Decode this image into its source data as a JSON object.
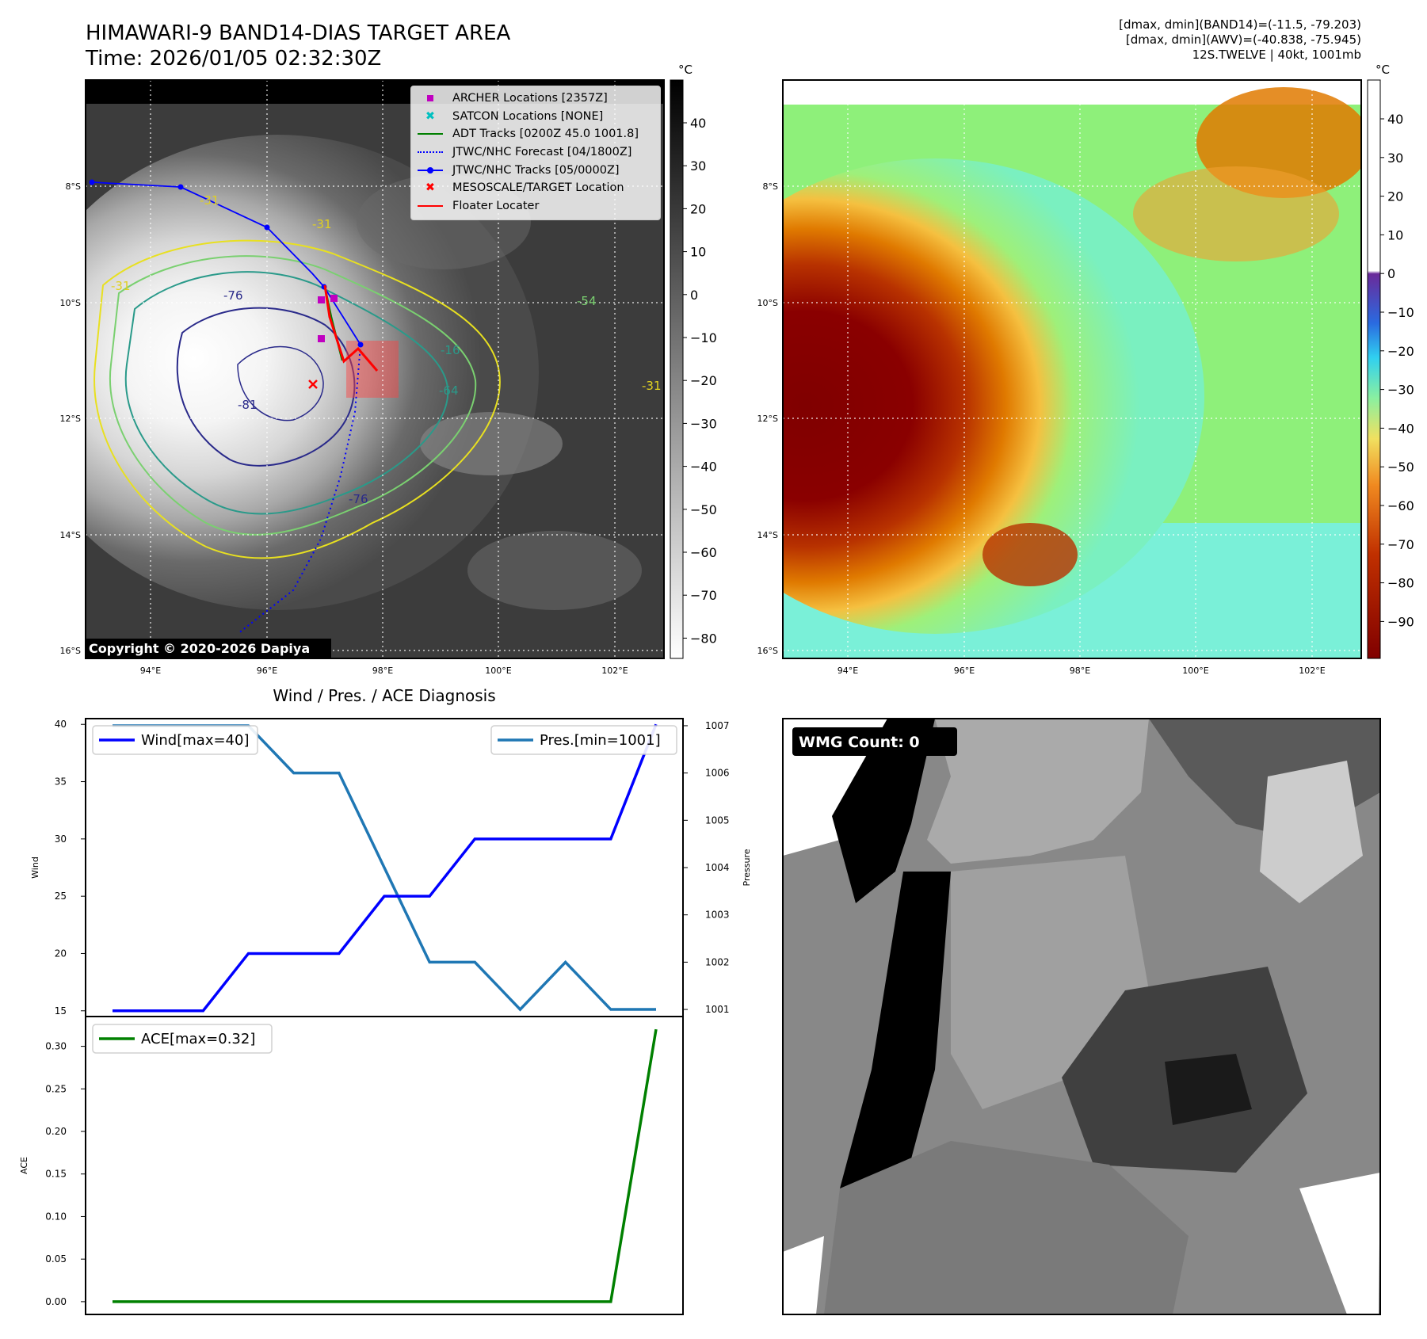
{
  "header": {
    "title_line1": "HIMAWARI-9 BAND14-DIAS TARGET AREA",
    "title_line2": "Time: 2026/01/05 02:32:30Z",
    "info_line1": "[dmax, dmin](BAND14)=(-11.5, -79.203)",
    "info_line2": "[dmax, dmin](AWV)=(-40.838, -75.945)",
    "info_line3": "12S.TWELVE | 40kt, 1001mb"
  },
  "maps": {
    "lat_ticks": [
      "8°S",
      "10°S",
      "12°S",
      "14°S",
      "16°S"
    ],
    "lon_ticks": [
      "94°E",
      "96°E",
      "98°E",
      "100°E",
      "102°E"
    ],
    "copyright": "Copyright © 2020-2026 Dapiya",
    "contour_labels": [
      "-31",
      "-31",
      "-31",
      "-76",
      "-81",
      "-76",
      "-64",
      "-16",
      "-31",
      "-54"
    ],
    "legend": [
      {
        "label": "ARCHER Locations [2357Z]",
        "color": "#c000c0",
        "marker": "square"
      },
      {
        "label": "SATCON Locations [NONE]",
        "color": "#00c0c0",
        "marker": "x"
      },
      {
        "label": "ADT Tracks [0200Z 45.0 1001.8]",
        "color": "#008000",
        "marker": "line"
      },
      {
        "label": "JTWC/NHC Forecast [04/1800Z]",
        "color": "#0000ff",
        "marker": "dotted"
      },
      {
        "label": "JTWC/NHC Tracks [05/0000Z]",
        "color": "#0000ff",
        "marker": "line-dot"
      },
      {
        "label": "MESOSCALE/TARGET Location",
        "color": "#ff0000",
        "marker": "x"
      },
      {
        "label": "Floater Locater",
        "color": "#ff0000",
        "marker": "line"
      }
    ],
    "colorbar_left": {
      "unit": "°C",
      "ticks": [
        "40",
        "30",
        "20",
        "10",
        "0",
        "−10",
        "−20",
        "−30",
        "−40",
        "−50",
        "−60",
        "−70",
        "−80"
      ]
    },
    "colorbar_right": {
      "unit": "°C",
      "ticks": [
        "40",
        "30",
        "20",
        "10",
        "0",
        "−10",
        "−20",
        "−30",
        "−40",
        "−50",
        "−60",
        "−70",
        "−80",
        "−90"
      ]
    }
  },
  "wmg": {
    "label": "WMG Count: 0"
  },
  "chart_data": [
    {
      "type": "line",
      "title": "Wind / Pres. / ACE Diagnosis",
      "x": [
        0,
        1,
        2,
        3,
        4,
        5,
        6,
        7,
        8,
        9,
        10,
        11,
        12
      ],
      "series": [
        {
          "name": "Wind[max=40]",
          "axis": "left",
          "color": "#0000ff",
          "values": [
            15,
            15,
            15,
            20,
            20,
            20,
            25,
            25,
            30,
            30,
            30,
            30,
            40
          ]
        },
        {
          "name": "Pres.[min=1001]",
          "axis": "right",
          "color": "#1f77b4",
          "values": [
            1007,
            1007,
            1007,
            1007,
            1006,
            1006,
            1004,
            1002,
            1002,
            1001,
            1002,
            1001,
            1001
          ]
        }
      ],
      "ylabel": "Wind",
      "ylim": [
        14.5,
        40.5
      ],
      "yticks": [
        "40",
        "35",
        "30",
        "25",
        "20",
        "15"
      ],
      "y2label": "Pressure",
      "y2lim": [
        1000.85,
        1007.15
      ],
      "y2ticks": [
        "1007",
        "1006",
        "1005",
        "1004",
        "1003",
        "1002",
        "1001"
      ],
      "legend": [
        "upper-left",
        "upper-right"
      ]
    },
    {
      "type": "line",
      "x": [
        0,
        1,
        2,
        3,
        4,
        5,
        6,
        7,
        8,
        9,
        10,
        11,
        12
      ],
      "series": [
        {
          "name": "ACE[max=0.32]",
          "color": "#008000",
          "values": [
            0,
            0,
            0,
            0,
            0,
            0,
            0,
            0,
            0,
            0,
            0,
            0,
            0.32
          ]
        }
      ],
      "ylabel": "ACE",
      "ylim": [
        -0.015,
        0.335
      ],
      "yticks": [
        "0.30",
        "0.25",
        "0.20",
        "0.15",
        "0.10",
        "0.05",
        "0.00"
      ],
      "legend": "upper-left"
    }
  ]
}
